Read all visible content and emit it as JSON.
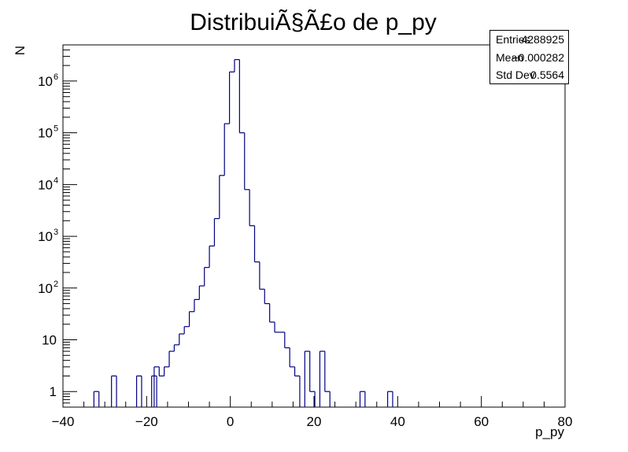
{
  "chart_data": {
    "type": "histogram",
    "title": "DistribuiÃ§Ã£o de p_py",
    "xlabel": "p_py",
    "ylabel": "N",
    "xlim": [
      -40,
      80
    ],
    "ylim": [
      0.5,
      5000000
    ],
    "yscale": "log",
    "grid": false,
    "x_ticks": [
      "−40",
      "−20",
      "0",
      "20",
      "40",
      "60",
      "80"
    ],
    "y_ticks": [
      {
        "value": 1,
        "label": "1"
      },
      {
        "value": 10,
        "label": "10"
      },
      {
        "value": 100,
        "base": "10",
        "exp": "2"
      },
      {
        "value": 1000,
        "base": "10",
        "exp": "3"
      },
      {
        "value": 10000,
        "base": "10",
        "exp": "4"
      },
      {
        "value": 100000,
        "base": "10",
        "exp": "5"
      },
      {
        "value": 1000000,
        "base": "10",
        "exp": "6"
      }
    ],
    "line_color": "#000080",
    "bin_width": 1.2,
    "bins": [
      {
        "x": -32.6,
        "count": 1
      },
      {
        "x": -28.4,
        "count": 2
      },
      {
        "x": -22.4,
        "count": 2
      },
      {
        "x": -18.8,
        "count": 2
      },
      {
        "x": -18.2,
        "count": 3
      },
      {
        "x": -17.0,
        "count": 2
      },
      {
        "x": -15.8,
        "count": 3
      },
      {
        "x": -14.6,
        "count": 6
      },
      {
        "x": -13.4,
        "count": 8
      },
      {
        "x": -12.2,
        "count": 13
      },
      {
        "x": -11.0,
        "count": 18
      },
      {
        "x": -9.8,
        "count": 35
      },
      {
        "x": -8.6,
        "count": 60
      },
      {
        "x": -7.4,
        "count": 110
      },
      {
        "x": -6.2,
        "count": 250
      },
      {
        "x": -5.0,
        "count": 650
      },
      {
        "x": -3.8,
        "count": 2200
      },
      {
        "x": -2.6,
        "count": 15000
      },
      {
        "x": -1.4,
        "count": 150000
      },
      {
        "x": -0.2,
        "count": 1500000
      },
      {
        "x": 1.0,
        "count": 2600000
      },
      {
        "x": 2.2,
        "count": 100000
      },
      {
        "x": 3.4,
        "count": 8000
      },
      {
        "x": 4.6,
        "count": 1600
      },
      {
        "x": 5.8,
        "count": 320
      },
      {
        "x": 7.0,
        "count": 95
      },
      {
        "x": 8.2,
        "count": 50
      },
      {
        "x": 9.4,
        "count": 22
      },
      {
        "x": 10.6,
        "count": 14
      },
      {
        "x": 11.8,
        "count": 14
      },
      {
        "x": 13.0,
        "count": 7
      },
      {
        "x": 14.2,
        "count": 3
      },
      {
        "x": 15.4,
        "count": 2
      },
      {
        "x": 17.8,
        "count": 6
      },
      {
        "x": 19.0,
        "count": 1
      },
      {
        "x": 21.4,
        "count": 6
      },
      {
        "x": 22.6,
        "count": 1
      },
      {
        "x": 31.0,
        "count": 1
      },
      {
        "x": 37.6,
        "count": 1
      }
    ],
    "stats": {
      "entries_label": "Entries",
      "entries": "4288925",
      "mean_label": "Mean",
      "mean": "−0.000282",
      "stddev_label": "Std Dev",
      "stddev": "0.5564"
    }
  }
}
